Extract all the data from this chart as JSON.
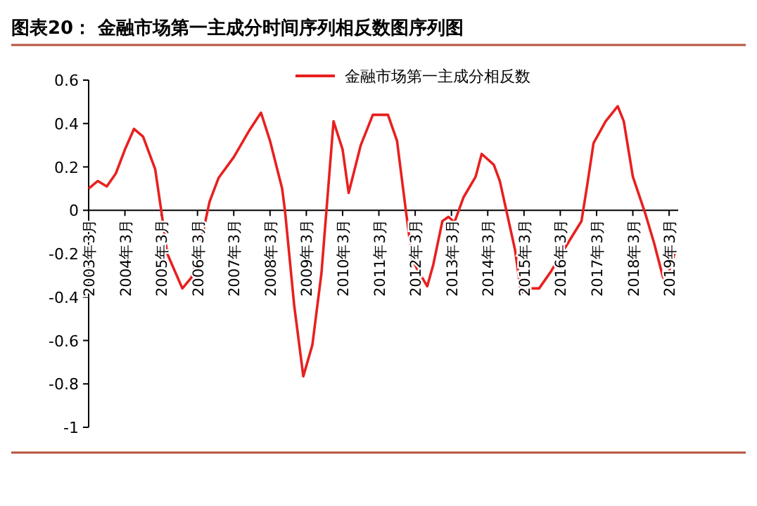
{
  "chart_data": {
    "type": "line",
    "title": "图表20：  金融市场第一主成分时间序列相反数图序列图",
    "x": [
      "2003-03",
      "2003-06",
      "2003-09",
      "2003-12",
      "2004-03",
      "2004-06",
      "2004-09",
      "2005-01",
      "2005-03",
      "2005-05",
      "2005-10",
      "2006-01",
      "2006-03",
      "2006-07",
      "2006-10",
      "2007-03",
      "2007-08",
      "2007-12",
      "2008-03",
      "2008-07",
      "2008-08",
      "2008-11",
      "2009-02",
      "2009-05",
      "2009-08",
      "2009-12",
      "2010-03",
      "2010-05",
      "2010-09",
      "2011-01",
      "2011-06",
      "2011-09",
      "2011-12",
      "2012-02",
      "2012-04",
      "2012-07",
      "2012-09",
      "2012-12",
      "2013-02",
      "2013-04",
      "2013-07",
      "2013-11",
      "2014-01",
      "2014-05",
      "2014-07",
      "2014-12",
      "2015-02",
      "2015-05",
      "2015-08",
      "2015-12",
      "2016-06",
      "2016-10",
      "2016-12",
      "2017-02",
      "2017-06",
      "2017-10",
      "2017-12",
      "2018-03",
      "2018-07",
      "2018-10",
      "2019-01",
      "2019-03",
      "2019-05"
    ],
    "series": [
      {
        "name": "金融市场第一主成分相反数",
        "color": "#e8201f",
        "values": [
          0.1,
          0.135,
          0.11,
          0.17,
          0.28,
          0.375,
          0.34,
          0.19,
          0,
          -0.2,
          -0.36,
          -0.31,
          -0.22,
          0.04,
          0.15,
          0.245,
          0.365,
          0.45,
          0.32,
          0.1,
          -0.01,
          -0.44,
          -0.765,
          -0.62,
          -0.29,
          0.41,
          0.28,
          0.08,
          0.3,
          0.44,
          0.44,
          0.32,
          -0.01,
          -0.225,
          -0.28,
          -0.35,
          -0.25,
          -0.05,
          -0.03,
          -0.055,
          0.06,
          0.155,
          0.26,
          0.21,
          0.135,
          -0.18,
          -0.38,
          -0.36,
          -0.36,
          -0.28,
          -0.14,
          -0.05,
          0.125,
          0.31,
          0.41,
          0.48,
          0.41,
          0.155,
          -0.01,
          -0.15,
          -0.31,
          -0.28,
          -0.19
        ]
      }
    ],
    "xlim": [
      "2003-03",
      "2019-06"
    ],
    "xticks": [
      {
        "value": "2003-03",
        "label": "2003年3月"
      },
      {
        "value": "2004-03",
        "label": "2004年3月"
      },
      {
        "value": "2005-03",
        "label": "2005年3月"
      },
      {
        "value": "2006-03",
        "label": "2006年3月"
      },
      {
        "value": "2007-03",
        "label": "2007年3月"
      },
      {
        "value": "2008-03",
        "label": "2008年3月"
      },
      {
        "value": "2009-03",
        "label": "2009年3月"
      },
      {
        "value": "2010-03",
        "label": "2010年3月"
      },
      {
        "value": "2011-03",
        "label": "2011年3月"
      },
      {
        "value": "2012-03",
        "label": "2012年3月"
      },
      {
        "value": "2013-03",
        "label": "2013年3月"
      },
      {
        "value": "2014-03",
        "label": "2014年3月"
      },
      {
        "value": "2015-03",
        "label": "2015年3月"
      },
      {
        "value": "2016-03",
        "label": "2016年3月"
      },
      {
        "value": "2017-03",
        "label": "2017年3月"
      },
      {
        "value": "2018-03",
        "label": "2018年3月"
      },
      {
        "value": "2019-03",
        "label": "2019年3月"
      }
    ],
    "ylim": [
      -1,
      0.6
    ],
    "yticks": [
      -1,
      {
        "value": -0.8,
        "label": "-0.8"
      },
      {
        "value": -0.6,
        "label": "-0.6"
      },
      {
        "value": -0.4,
        "label": "-0.4"
      },
      {
        "value": -0.2,
        "label": "-0.2"
      },
      0,
      {
        "value": 0.2,
        "label": "0.2"
      },
      {
        "value": 0.4,
        "label": "0.4"
      },
      {
        "value": 0.6,
        "label": "0.6"
      }
    ],
    "grid": false,
    "legend": "top",
    "marker": "none",
    "line_style": "solid"
  }
}
